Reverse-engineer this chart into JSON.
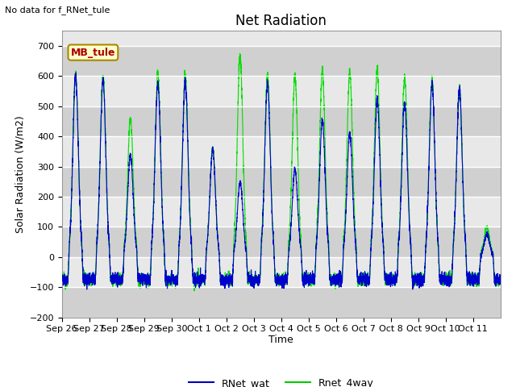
{
  "title": "Net Radiation",
  "top_left_text": "No data for f_RNet_tule",
  "ylabel": "Solar Radiation (W/m2)",
  "xlabel": "Time",
  "ylim": [
    -200,
    750
  ],
  "yticks": [
    -200,
    -100,
    0,
    100,
    200,
    300,
    400,
    500,
    600,
    700
  ],
  "xtick_labels": [
    "Sep 26",
    "Sep 27",
    "Sep 28",
    "Sep 29",
    "Sep 30",
    "Oct 1",
    "Oct 2",
    "Oct 3",
    "Oct 4",
    "Oct 5",
    "Oct 6",
    "Oct 7",
    "Oct 8",
    "Oct 9",
    "Oct 10",
    "Oct 11"
  ],
  "legend_labels": [
    "RNet_wat",
    "Rnet_4way"
  ],
  "line_color_blue": "#0000cc",
  "line_color_green": "#00dd00",
  "legend_colors": [
    "#0000bb",
    "#00cc00"
  ],
  "annotation_text": "MB_tule",
  "annotation_fgcolor": "#aa0000",
  "annotation_bgcolor": "#ffffcc",
  "annotation_edgecolor": "#aa8800",
  "fig_facecolor": "#ffffff",
  "plot_facecolor": "#e8e8e8",
  "grid_color": "#ffffff",
  "n_days": 16,
  "pts_per_day": 288,
  "night_base": -75,
  "night_noise": 10,
  "day_peaks_blue": [
    600,
    585,
    340,
    575,
    580,
    355,
    250,
    575,
    290,
    455,
    410,
    520,
    510,
    575,
    555,
    75
  ],
  "day_peaks_green": [
    610,
    600,
    460,
    610,
    600,
    365,
    670,
    600,
    600,
    620,
    615,
    625,
    595,
    585,
    555,
    100
  ],
  "figsize": [
    6.4,
    4.8
  ],
  "dpi": 100,
  "title_fontsize": 12,
  "label_fontsize": 9,
  "tick_fontsize": 8
}
